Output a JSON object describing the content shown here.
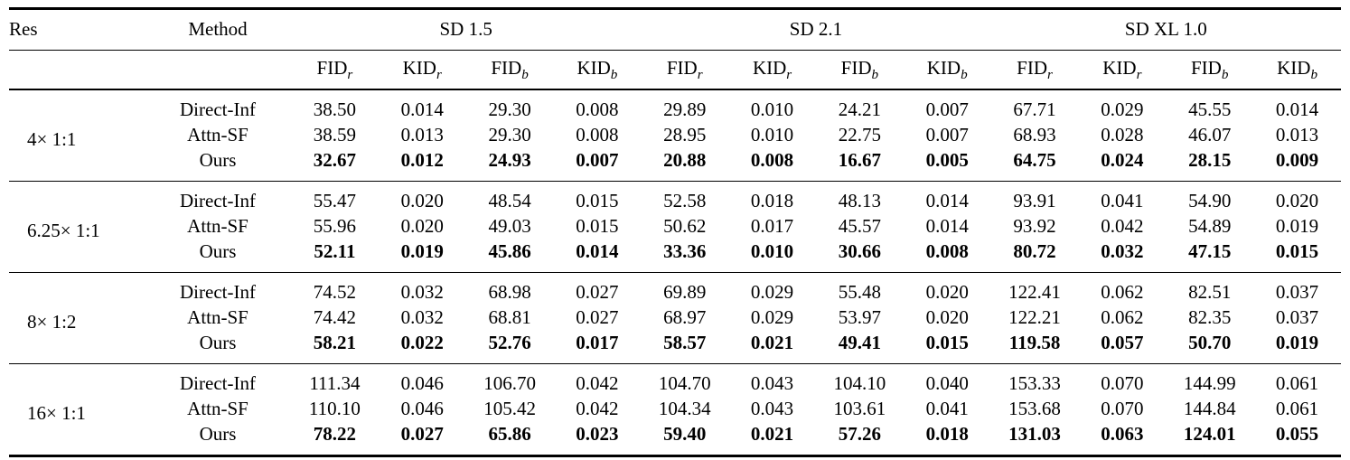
{
  "table": {
    "res_header": "Res",
    "method_header": "Method",
    "group_headers": [
      "SD 1.5",
      "SD 2.1",
      "SD XL 1.0"
    ],
    "metric_headers": [
      {
        "name": "FID",
        "sub": "r"
      },
      {
        "name": "KID",
        "sub": "r"
      },
      {
        "name": "FID",
        "sub": "b"
      },
      {
        "name": "KID",
        "sub": "b"
      }
    ],
    "groups": [
      {
        "res": "4× 1:1",
        "rows": [
          {
            "method": "Direct-Inf",
            "bold": false,
            "values": [
              "38.50",
              "0.014",
              "29.30",
              "0.008",
              "29.89",
              "0.010",
              "24.21",
              "0.007",
              "67.71",
              "0.029",
              "45.55",
              "0.014"
            ]
          },
          {
            "method": "Attn-SF",
            "bold": false,
            "values": [
              "38.59",
              "0.013",
              "29.30",
              "0.008",
              "28.95",
              "0.010",
              "22.75",
              "0.007",
              "68.93",
              "0.028",
              "46.07",
              "0.013"
            ]
          },
          {
            "method": "Ours",
            "bold": true,
            "values": [
              "32.67",
              "0.012",
              "24.93",
              "0.007",
              "20.88",
              "0.008",
              "16.67",
              "0.005",
              "64.75",
              "0.024",
              "28.15",
              "0.009"
            ]
          }
        ]
      },
      {
        "res": "6.25× 1:1",
        "rows": [
          {
            "method": "Direct-Inf",
            "bold": false,
            "values": [
              "55.47",
              "0.020",
              "48.54",
              "0.015",
              "52.58",
              "0.018",
              "48.13",
              "0.014",
              "93.91",
              "0.041",
              "54.90",
              "0.020"
            ]
          },
          {
            "method": "Attn-SF",
            "bold": false,
            "values": [
              "55.96",
              "0.020",
              "49.03",
              "0.015",
              "50.62",
              "0.017",
              "45.57",
              "0.014",
              "93.92",
              "0.042",
              "54.89",
              "0.019"
            ]
          },
          {
            "method": "Ours",
            "bold": true,
            "values": [
              "52.11",
              "0.019",
              "45.86",
              "0.014",
              "33.36",
              "0.010",
              "30.66",
              "0.008",
              "80.72",
              "0.032",
              "47.15",
              "0.015"
            ]
          }
        ]
      },
      {
        "res": "8× 1:2",
        "rows": [
          {
            "method": "Direct-Inf",
            "bold": false,
            "values": [
              "74.52",
              "0.032",
              "68.98",
              "0.027",
              "69.89",
              "0.029",
              "55.48",
              "0.020",
              "122.41",
              "0.062",
              "82.51",
              "0.037"
            ]
          },
          {
            "method": "Attn-SF",
            "bold": false,
            "values": [
              "74.42",
              "0.032",
              "68.81",
              "0.027",
              "68.97",
              "0.029",
              "53.97",
              "0.020",
              "122.21",
              "0.062",
              "82.35",
              "0.037"
            ]
          },
          {
            "method": "Ours",
            "bold": true,
            "values": [
              "58.21",
              "0.022",
              "52.76",
              "0.017",
              "58.57",
              "0.021",
              "49.41",
              "0.015",
              "119.58",
              "0.057",
              "50.70",
              "0.019"
            ]
          }
        ]
      },
      {
        "res": "16× 1:1",
        "rows": [
          {
            "method": "Direct-Inf",
            "bold": false,
            "values": [
              "111.34",
              "0.046",
              "106.70",
              "0.042",
              "104.70",
              "0.043",
              "104.10",
              "0.040",
              "153.33",
              "0.070",
              "144.99",
              "0.061"
            ]
          },
          {
            "method": "Attn-SF",
            "bold": false,
            "values": [
              "110.10",
              "0.046",
              "105.42",
              "0.042",
              "104.34",
              "0.043",
              "103.61",
              "0.041",
              "153.68",
              "0.070",
              "144.84",
              "0.061"
            ]
          },
          {
            "method": "Ours",
            "bold": true,
            "values": [
              "78.22",
              "0.027",
              "65.86",
              "0.023",
              "59.40",
              "0.021",
              "57.26",
              "0.018",
              "131.03",
              "0.063",
              "124.01",
              "0.055"
            ]
          }
        ]
      }
    ]
  },
  "chart_data": {
    "type": "table",
    "title": "FID/KID comparison across SD 1.5, SD 2.1, SD XL 1.0 at multiple resolutions",
    "column_groups": [
      "SD 1.5",
      "SD 2.1",
      "SD XL 1.0"
    ],
    "metrics_per_group": [
      "FID_r",
      "KID_r",
      "FID_b",
      "KID_b"
    ],
    "row_groups": [
      "4× 1:1",
      "6.25× 1:1",
      "8× 1:2",
      "16× 1:1"
    ],
    "methods": [
      "Direct-Inf",
      "Attn-SF",
      "Ours"
    ]
  }
}
